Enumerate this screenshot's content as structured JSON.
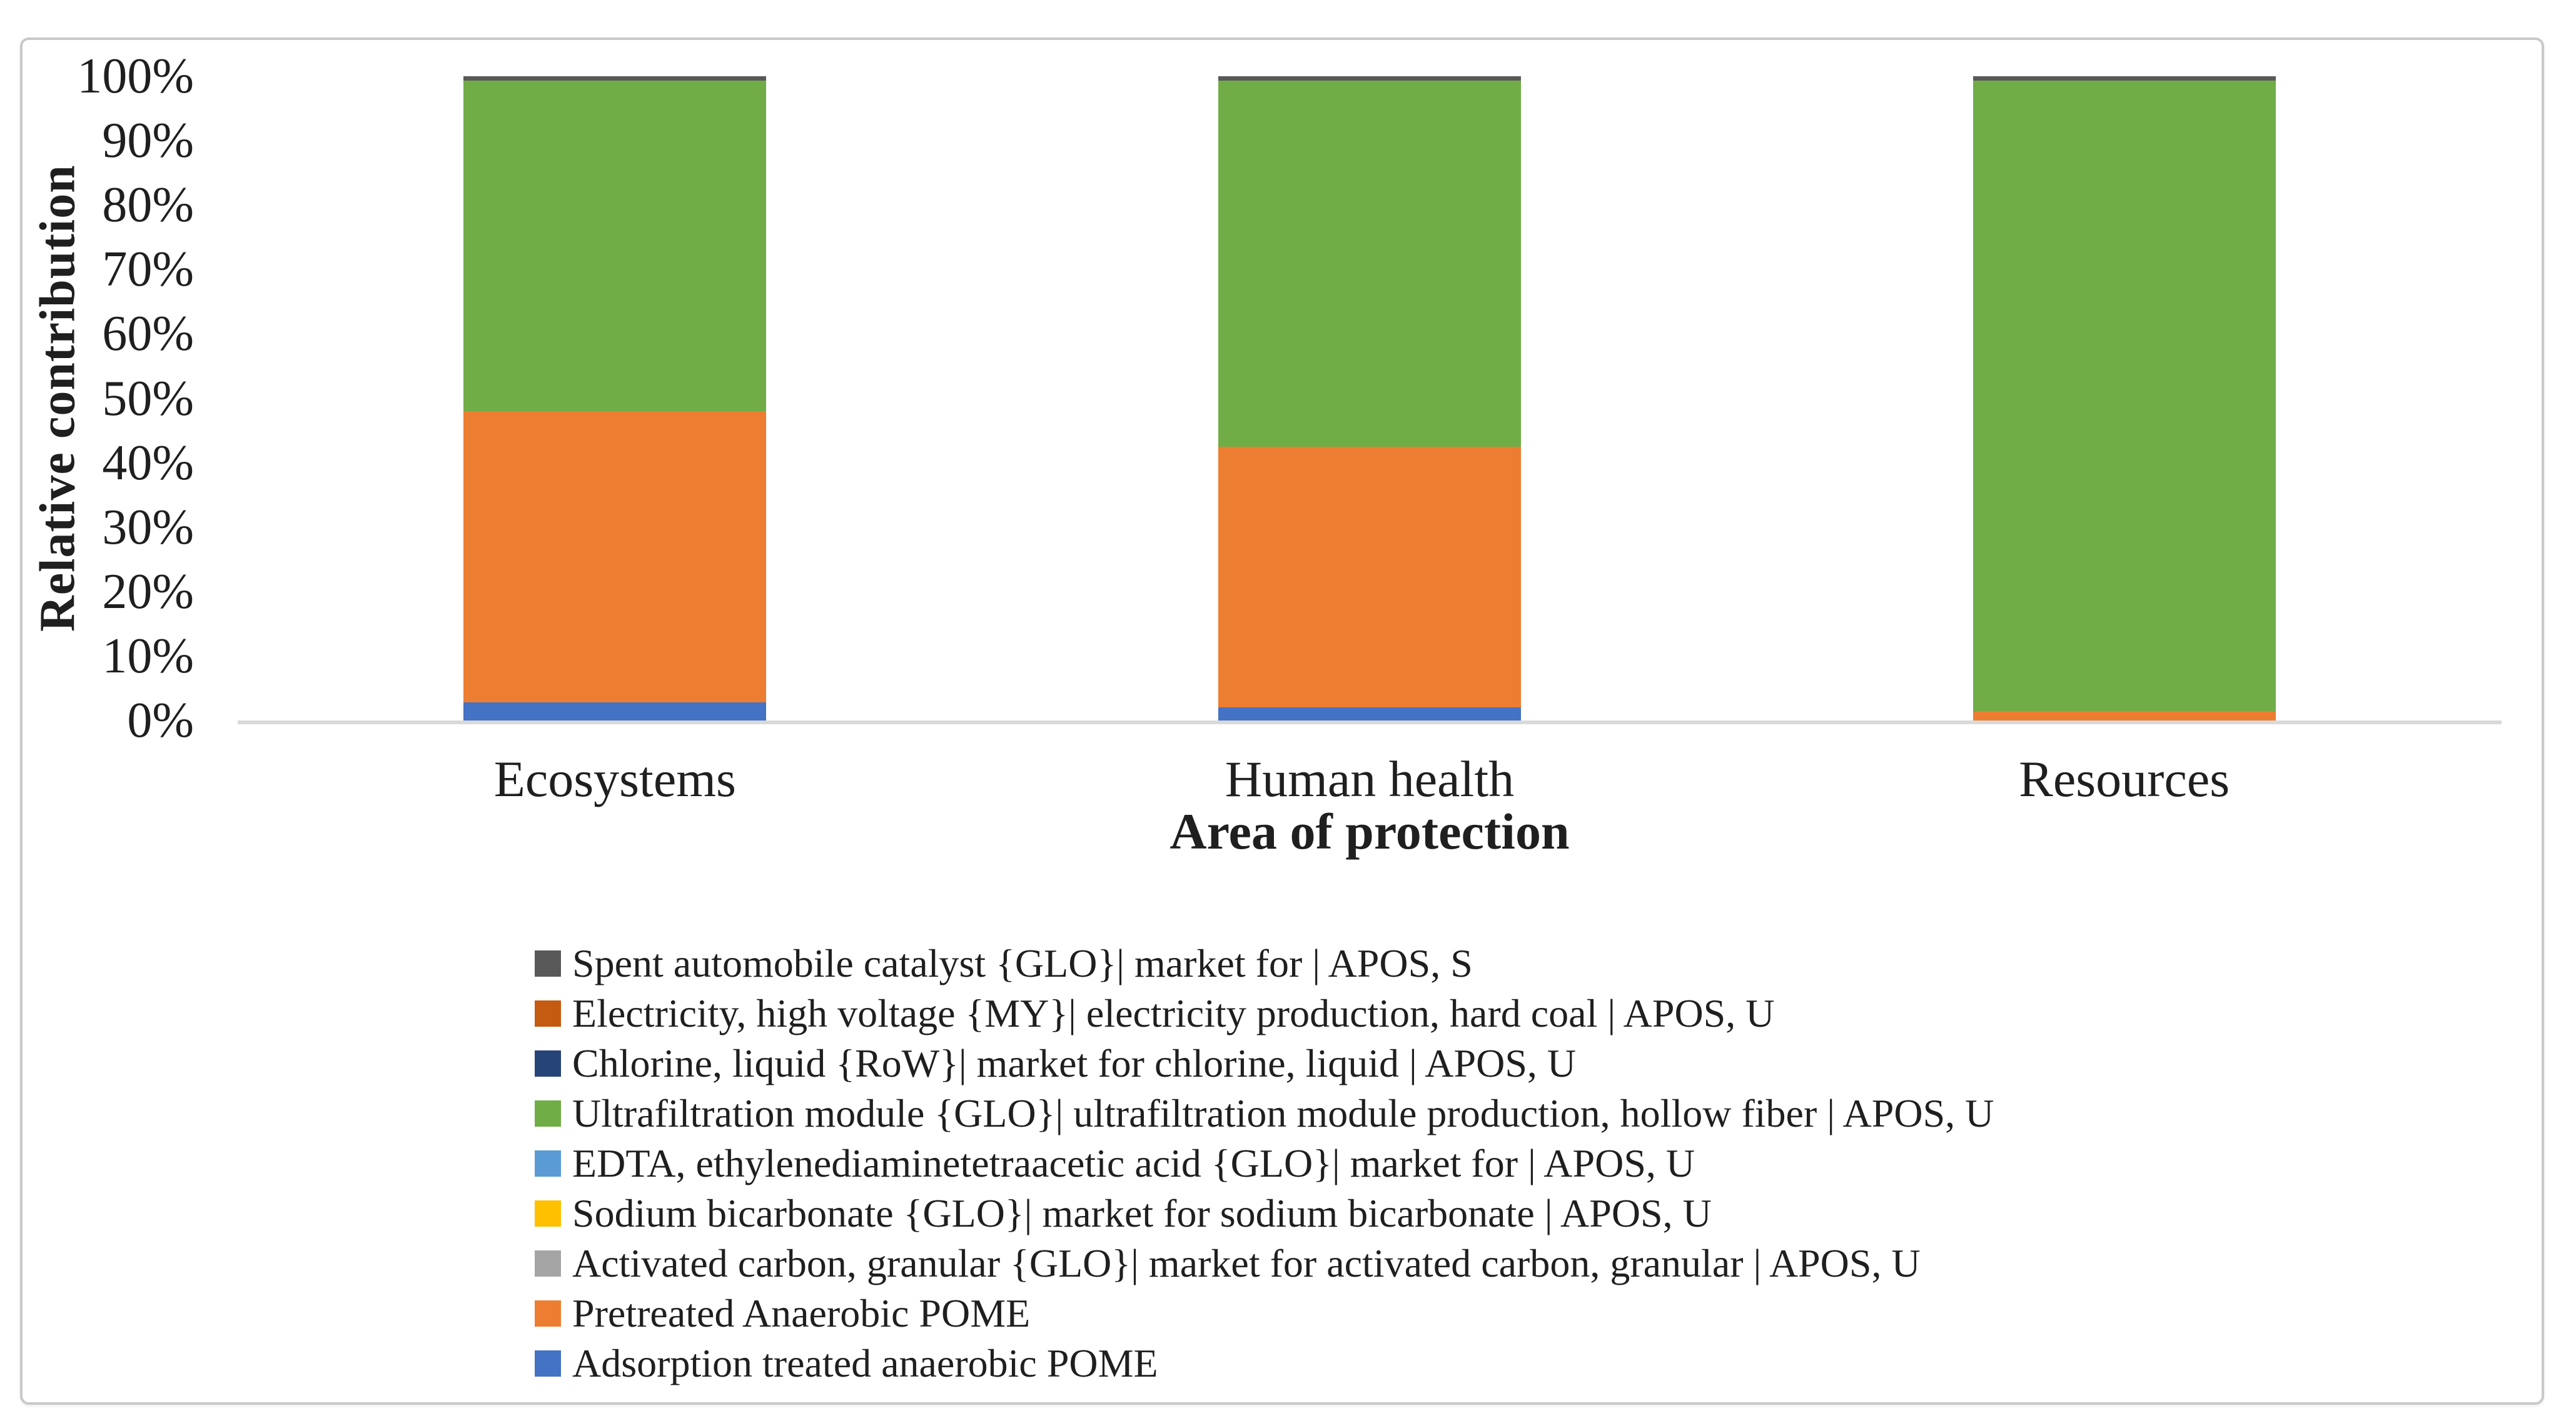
{
  "chart_data": {
    "type": "bar",
    "stacked": true,
    "title": "",
    "xlabel": "Area of protection",
    "ylabel": "Relative contribution",
    "unit": "percent",
    "ylim": [
      0,
      100
    ],
    "grid": false,
    "legend_position": "bottom-left",
    "legend_order": "reverse_of_stack",
    "axis_line_color": "#d9d9d9",
    "y_tick_labels": [
      "100%",
      "90%",
      "80%",
      "70%",
      "60%",
      "50%",
      "40%",
      "30%",
      "20%",
      "10%",
      "0%"
    ],
    "categories": [
      "Ecosystems",
      "Human health",
      "Resources"
    ],
    "series": [
      {
        "name": "Adsorption treated anaerobic POME",
        "color": "#4472c4",
        "values": [
          2.8,
          2.0,
          0
        ]
      },
      {
        "name": "Pretreated Anaerobic POME",
        "color": "#ed7d31",
        "values": [
          45.2,
          40.5,
          1.5
        ]
      },
      {
        "name": "Activated carbon, granular {GLO}| market for activated carbon, granular | APOS, U",
        "color": "#a5a5a5",
        "values": [
          0,
          0,
          0
        ]
      },
      {
        "name": "Sodium bicarbonate {GLO}| market for sodium bicarbonate | APOS, U",
        "color": "#ffc000",
        "values": [
          0,
          0,
          0
        ]
      },
      {
        "name": "EDTA, ethylenediaminetetraacetic acid {GLO}| market for | APOS, U",
        "color": "#5b9bd5",
        "values": [
          0,
          0,
          0
        ]
      },
      {
        "name": "Ultrafiltration module {GLO}| ultrafiltration module production, hollow fiber | APOS, U",
        "color": "#70ad47",
        "values": [
          51.3,
          56.8,
          97.8
        ]
      },
      {
        "name": "Chlorine, liquid {RoW}| market for chlorine, liquid | APOS, U",
        "color": "#264478",
        "values": [
          0,
          0,
          0
        ]
      },
      {
        "name": "Electricity, high voltage {MY}| electricity production, hard coal | APOS, U",
        "color": "#c55a11",
        "values": [
          0,
          0,
          0
        ]
      },
      {
        "name": "Spent automobile catalyst {GLO}| market for | APOS, S",
        "color": "#595959",
        "values": [
          0.7,
          0.7,
          0.7
        ]
      }
    ]
  }
}
